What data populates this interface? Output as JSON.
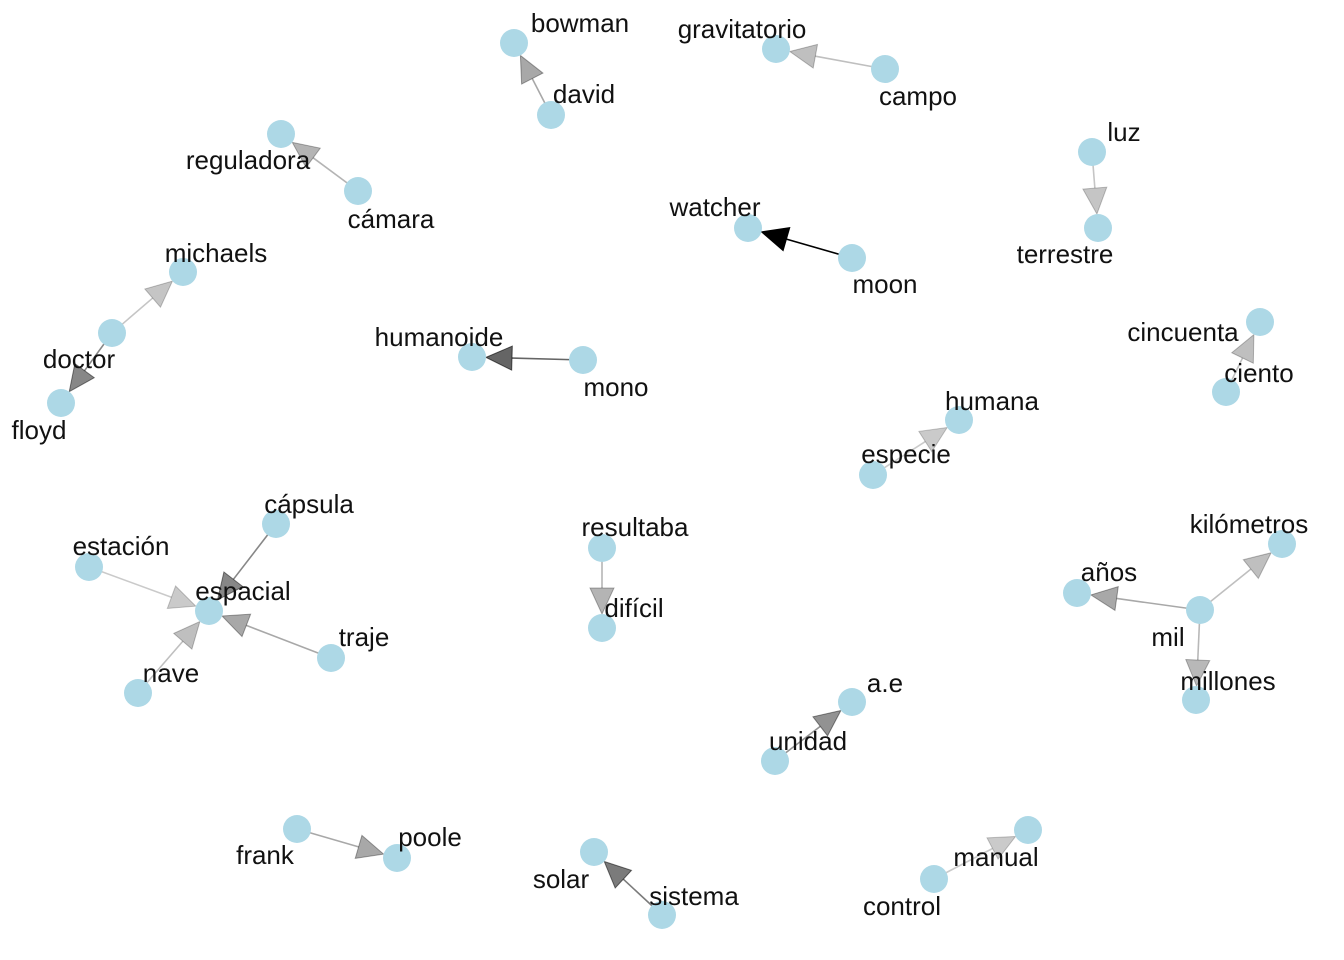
{
  "graph": {
    "node_color": "#add8e6",
    "edge_color": "#000000",
    "nodes": [
      {
        "id": "bowman",
        "label": "bowman"
      },
      {
        "id": "david",
        "label": "david"
      },
      {
        "id": "gravitatorio",
        "label": "gravitatorio"
      },
      {
        "id": "campo",
        "label": "campo"
      },
      {
        "id": "reguladora",
        "label": "reguladora"
      },
      {
        "id": "camara",
        "label": "cámara"
      },
      {
        "id": "luz",
        "label": "luz"
      },
      {
        "id": "terrestre",
        "label": "terrestre"
      },
      {
        "id": "watcher",
        "label": "watcher"
      },
      {
        "id": "moon",
        "label": "moon"
      },
      {
        "id": "michaels",
        "label": "michaels"
      },
      {
        "id": "doctor",
        "label": "doctor"
      },
      {
        "id": "floyd",
        "label": "floyd"
      },
      {
        "id": "humanoide",
        "label": "humanoide"
      },
      {
        "id": "mono",
        "label": "mono"
      },
      {
        "id": "cincuenta",
        "label": "cincuenta"
      },
      {
        "id": "ciento",
        "label": "ciento"
      },
      {
        "id": "humana",
        "label": "humana"
      },
      {
        "id": "especie",
        "label": "especie"
      },
      {
        "id": "capsula",
        "label": "cápsula"
      },
      {
        "id": "estacion",
        "label": "estación"
      },
      {
        "id": "espacial",
        "label": "espacial"
      },
      {
        "id": "traje",
        "label": "traje"
      },
      {
        "id": "nave",
        "label": "nave"
      },
      {
        "id": "resultaba",
        "label": "resultaba"
      },
      {
        "id": "dificil",
        "label": "difícil"
      },
      {
        "id": "kilometros",
        "label": "kilómetros"
      },
      {
        "id": "anos",
        "label": "años"
      },
      {
        "id": "mil",
        "label": "mil"
      },
      {
        "id": "millones",
        "label": "millones"
      },
      {
        "id": "ae",
        "label": "a.e"
      },
      {
        "id": "unidad",
        "label": "unidad"
      },
      {
        "id": "frank",
        "label": "frank"
      },
      {
        "id": "poole",
        "label": "poole"
      },
      {
        "id": "solar",
        "label": "solar"
      },
      {
        "id": "sistema",
        "label": "sistema"
      },
      {
        "id": "manual",
        "label": "manual"
      },
      {
        "id": "control",
        "label": "control"
      }
    ],
    "edges": [
      {
        "from": "david",
        "to": "bowman",
        "weight": 0.25
      },
      {
        "from": "campo",
        "to": "gravitatorio",
        "weight": 0.15
      },
      {
        "from": "camara",
        "to": "reguladora",
        "weight": 0.2
      },
      {
        "from": "luz",
        "to": "terrestre",
        "weight": 0.12
      },
      {
        "from": "moon",
        "to": "watcher",
        "weight": 1.0
      },
      {
        "from": "doctor",
        "to": "michaels",
        "weight": 0.12
      },
      {
        "from": "doctor",
        "to": "floyd",
        "weight": 0.4
      },
      {
        "from": "mono",
        "to": "humanoide",
        "weight": 0.55
      },
      {
        "from": "ciento",
        "to": "cincuenta",
        "weight": 0.15
      },
      {
        "from": "especie",
        "to": "humana",
        "weight": 0.1
      },
      {
        "from": "capsula",
        "to": "espacial",
        "weight": 0.4
      },
      {
        "from": "estacion",
        "to": "espacial",
        "weight": 0.1
      },
      {
        "from": "traje",
        "to": "espacial",
        "weight": 0.25
      },
      {
        "from": "nave",
        "to": "espacial",
        "weight": 0.15
      },
      {
        "from": "resultaba",
        "to": "dificil",
        "weight": 0.2
      },
      {
        "from": "mil",
        "to": "kilometros",
        "weight": 0.15
      },
      {
        "from": "mil",
        "to": "anos",
        "weight": 0.25
      },
      {
        "from": "mil",
        "to": "millones",
        "weight": 0.18
      },
      {
        "from": "unidad",
        "to": "ae",
        "weight": 0.35
      },
      {
        "from": "frank",
        "to": "poole",
        "weight": 0.25
      },
      {
        "from": "sistema",
        "to": "solar",
        "weight": 0.45
      },
      {
        "from": "control",
        "to": "manual",
        "weight": 0.1
      }
    ]
  }
}
